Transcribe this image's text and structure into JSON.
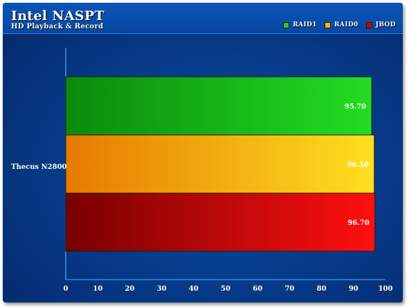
{
  "title": "Intel NASPT",
  "subtitle": "HD Playback & Record",
  "legend": [
    {
      "label": "RAID1",
      "color": "#22cc22"
    },
    {
      "label": "RAID0",
      "color": "#f5b800"
    },
    {
      "label": "JBOD",
      "color": "#d40000"
    }
  ],
  "chart_data": {
    "type": "bar",
    "orientation": "horizontal",
    "categories": [
      "Thecus N2800"
    ],
    "series": [
      {
        "name": "RAID1",
        "values": [
          95.7
        ],
        "color": "#22cc22"
      },
      {
        "name": "RAID0",
        "values": [
          96.5
        ],
        "color": "#f5b800"
      },
      {
        "name": "JBOD",
        "values": [
          96.7
        ],
        "color": "#d40000"
      }
    ],
    "value_labels": [
      "95.70",
      "96.50",
      "96.70"
    ],
    "xlim": [
      0,
      100
    ],
    "xticks": [
      "0",
      "10",
      "20",
      "30",
      "40",
      "50",
      "60",
      "70",
      "80",
      "90",
      "100"
    ],
    "grid": false,
    "legend_position": "top-right"
  }
}
